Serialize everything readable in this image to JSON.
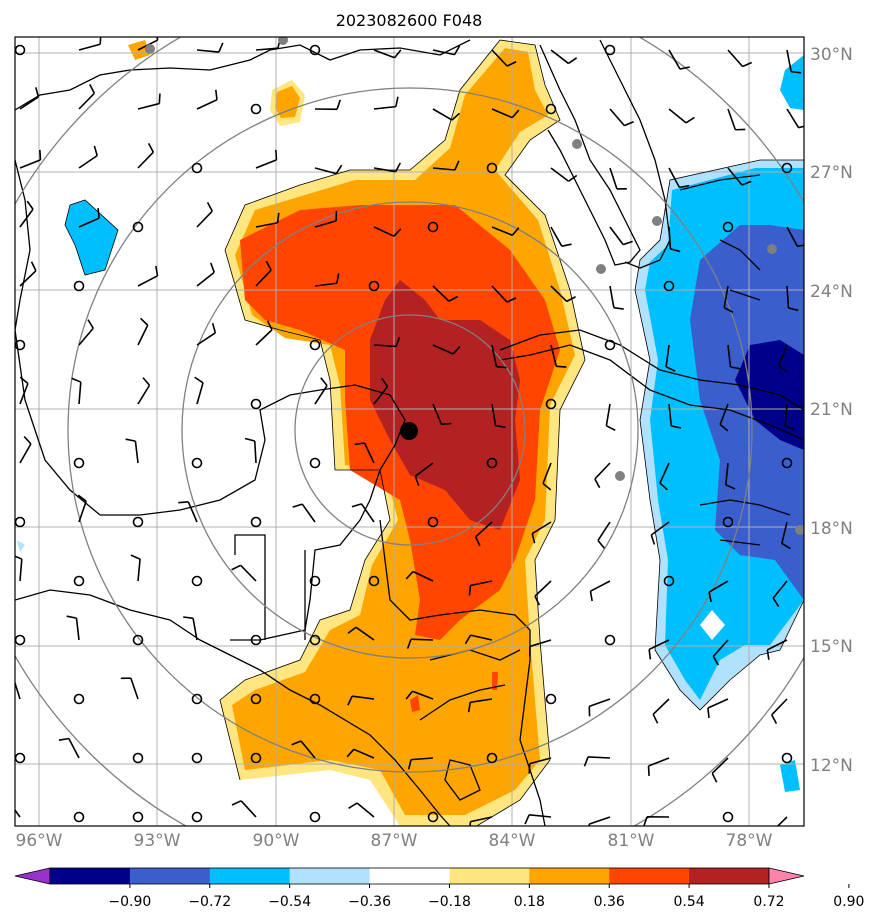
{
  "title": "2023082600 F048",
  "lat_labels": [
    "30°N",
    "27°N",
    "24°N",
    "21°N",
    "18°N",
    "15°N",
    "12°N"
  ],
  "lon_labels": [
    "96°W",
    "93°W",
    "90°W",
    "87°W",
    "84°W",
    "81°W",
    "78°W"
  ],
  "colorbar": {
    "ticks": [
      "−0.90",
      "−0.72",
      "−0.54",
      "−0.36",
      "−0.18",
      "0.18",
      "0.36",
      "0.54",
      "0.72",
      "0.90"
    ],
    "colors": [
      "#9932cc",
      "#00008b",
      "#3a5fcd",
      "#00bfff",
      "#b0e2ff",
      "#ffffff",
      "#ffe680",
      "#ffa500",
      "#ff4500",
      "#b22222",
      "#ff82ab"
    ]
  },
  "storm_center": {
    "lon": -86.4,
    "lat": 20.4
  },
  "range_rings": 4
}
